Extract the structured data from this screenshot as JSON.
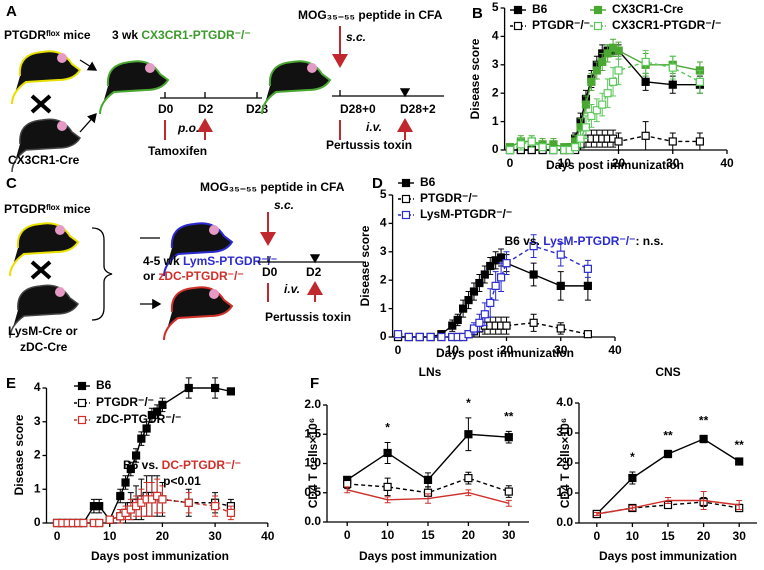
{
  "panel_labels": [
    "A",
    "B",
    "C",
    "D",
    "E",
    "F"
  ],
  "diagram_a": {
    "flox_mice": "PTGDRᶠˡᵒˣ mice",
    "cre_mice": "CX3CR1-Cre",
    "age": "3 wk ",
    "knockout": "CX3CR1-PTGDR⁻/⁻",
    "days": [
      "D0",
      "D2",
      "D28"
    ],
    "gavage": "p.o.",
    "drug": "Tamoxifen",
    "immunization": "MOG₃₅₋₅₅ peptide in CFA",
    "route": "s.c.",
    "boost_days": [
      "D28+0",
      "D28+2"
    ],
    "injection": "i.v.",
    "toxin": "Pertussis toxin"
  },
  "diagram_c": {
    "flox_mice": "PTGDRᶠˡᵒˣ mice",
    "cre_mice": [
      "LysM-Cre or",
      "zDC-Cre"
    ],
    "age": "4-5 wk ",
    "knockout_1": "LymS-PTGDR⁻/⁻",
    "or": "or ",
    "knockout_2": "zDC-PTGDR⁻/⁻",
    "immunization": "MOG₃₅₋₅₅ peptide in CFA",
    "route": "s.c.",
    "days": [
      "D0",
      "D2"
    ],
    "injection": "i.v.",
    "toxin": "Pertussis toxin"
  },
  "chart_data": [
    {
      "type": "line",
      "x_label": "Days post immunization",
      "y_label": "Disease score",
      "x": [
        0,
        2,
        4,
        6,
        8,
        10,
        11,
        12,
        13,
        14,
        15,
        16,
        17,
        18,
        19,
        20,
        25,
        30,
        35
      ],
      "xlim": [
        -1,
        40
      ],
      "xticks": [
        0,
        10,
        20,
        30,
        40
      ],
      "ylim": [
        0,
        5
      ],
      "yticks": [
        0,
        1,
        2,
        3,
        4,
        5
      ],
      "series": [
        {
          "name": "B6",
          "color": "#000000",
          "marker": "filled",
          "dashed": false,
          "values": [
            0,
            0,
            0,
            0,
            0,
            0,
            0.1,
            0.4,
            1.0,
            1.8,
            2.5,
            3.0,
            3.4,
            3.5,
            3.5,
            3.5,
            2.4,
            2.3,
            2.3
          ],
          "errors": [
            0,
            0,
            0,
            0,
            0,
            0,
            0.1,
            0.2,
            0.3,
            0.3,
            0.3,
            0.3,
            0.3,
            0.2,
            0.2,
            0.2,
            0.3,
            0.3,
            0.3
          ]
        },
        {
          "name": "PTGDR⁻/⁻",
          "color": "#000000",
          "marker": "open",
          "dashed": true,
          "values": [
            0,
            0,
            0,
            0,
            0,
            0,
            0,
            0,
            0.2,
            0.4,
            0.4,
            0.4,
            0.4,
            0.4,
            0.4,
            0.3,
            0.5,
            0.3,
            0.3
          ],
          "errors": [
            0,
            0,
            0,
            0,
            0,
            0,
            0,
            0,
            0.2,
            0.3,
            0.3,
            0.3,
            0.3,
            0.3,
            0.3,
            0.3,
            0.5,
            0.3,
            0.3
          ]
        },
        {
          "name": "CX3CR1-Cre",
          "color": "#4aa832",
          "marker": "filled",
          "dashed": false,
          "values": [
            0.1,
            0.3,
            0.3,
            0.2,
            0.2,
            0.1,
            0.1,
            0.3,
            0.8,
            1.6,
            2.4,
            2.8,
            3.1,
            3.4,
            3.6,
            3.5,
            3.0,
            3.0,
            2.8
          ],
          "errors": [
            0.1,
            0.2,
            0.2,
            0.2,
            0.2,
            0.1,
            0.1,
            0.2,
            0.3,
            0.3,
            0.3,
            0.3,
            0.3,
            0.3,
            0.3,
            0.3,
            0.4,
            0.3,
            0.3
          ]
        },
        {
          "name": "CX3CR1-PTGDR⁻/⁻",
          "color": "#5cc85c",
          "marker": "open",
          "dashed": true,
          "values": [
            0,
            0.2,
            0.3,
            0.1,
            0,
            0,
            0,
            0.1,
            0.4,
            0.8,
            1.2,
            1.4,
            1.6,
            2.0,
            2.4,
            2.8,
            3.1,
            2.9,
            2.4
          ],
          "errors": [
            0,
            0.2,
            0.2,
            0.1,
            0,
            0,
            0,
            0.1,
            0.3,
            0.4,
            0.4,
            0.4,
            0.4,
            0.5,
            0.5,
            0.5,
            0.4,
            0.4,
            0.4
          ]
        }
      ]
    },
    {
      "type": "line",
      "x_label": "Days post immunization",
      "y_label": "Disease score",
      "x": [
        0,
        2,
        4,
        6,
        8,
        10,
        11,
        12,
        13,
        14,
        15,
        16,
        17,
        18,
        19,
        20,
        25,
        30,
        35
      ],
      "xlim": [
        -1,
        40
      ],
      "xticks": [
        0,
        10,
        20,
        30,
        40
      ],
      "ylim": [
        0,
        5
      ],
      "yticks": [
        0,
        1,
        2,
        3,
        4,
        5
      ],
      "annotations": [
        [
          {
            "text": "B6 vs. ",
            "color": "#000000"
          },
          {
            "text": "LysM-PTGDR⁻/⁻",
            "color": "#2b2bd0"
          },
          {
            "text": ": n.s.",
            "color": "#000000"
          }
        ]
      ],
      "series": [
        {
          "name": "B6",
          "color": "#000000",
          "marker": "filled",
          "dashed": false,
          "values": [
            0,
            0,
            0,
            0,
            0.1,
            0.4,
            0.6,
            1.0,
            1.3,
            1.6,
            1.9,
            2.2,
            2.5,
            2.7,
            2.8,
            2.6,
            2.2,
            1.8,
            1.8
          ],
          "errors": [
            0,
            0,
            0,
            0,
            0.1,
            0.2,
            0.2,
            0.3,
            0.3,
            0.3,
            0.3,
            0.3,
            0.3,
            0.3,
            0.3,
            0.3,
            0.4,
            0.5,
            0.5
          ]
        },
        {
          "name": "PTGDR⁻/⁻",
          "color": "#000000",
          "marker": "open",
          "dashed": true,
          "values": [
            0,
            0,
            0,
            0,
            0,
            0,
            0,
            0,
            0.1,
            0.2,
            0.3,
            0.4,
            0.4,
            0.4,
            0.4,
            0.4,
            0.5,
            0.3,
            0.1
          ],
          "errors": [
            0,
            0,
            0,
            0,
            0,
            0,
            0,
            0,
            0.1,
            0.2,
            0.3,
            0.3,
            0.3,
            0.3,
            0.3,
            0.3,
            0.3,
            0.2,
            0.1
          ]
        },
        {
          "name": "LysM-PTGDR⁻/⁻",
          "color": "#2b2bd0",
          "marker": "open",
          "dashed": true,
          "values": [
            0.1,
            0,
            0,
            0,
            0,
            0,
            0,
            0,
            0.1,
            0.3,
            0.5,
            0.8,
            1.2,
            1.8,
            2.1,
            2.6,
            3.2,
            2.9,
            2.4
          ],
          "errors": [
            0.1,
            0,
            0,
            0,
            0,
            0,
            0,
            0,
            0.1,
            0.2,
            0.3,
            0.4,
            0.5,
            0.5,
            0.5,
            0.4,
            0.4,
            0.4,
            0.3
          ]
        }
      ]
    },
    {
      "type": "line",
      "x_label": "Days post immunization",
      "y_label": "Disease score",
      "x": [
        0,
        1,
        2,
        3,
        4,
        5,
        7,
        8,
        10,
        12,
        13,
        14,
        15,
        16,
        17,
        18,
        19,
        20,
        25,
        30,
        33
      ],
      "xlim": [
        -2,
        40
      ],
      "xticks": [
        0,
        10,
        20,
        30,
        40
      ],
      "ylim": [
        0,
        4
      ],
      "yticks": [
        0,
        1,
        2,
        3,
        4
      ],
      "annotations": [
        [
          {
            "text": "B6 vs. ",
            "color": "#000000"
          },
          {
            "text": "DC-PTGDR⁻/⁻",
            "color": "#d0302a"
          }
        ],
        [
          {
            "text": "p<0.01",
            "color": "#000000"
          }
        ]
      ],
      "series": [
        {
          "name": "B6",
          "color": "#000000",
          "marker": "filled",
          "dashed": false,
          "values": [
            0,
            0,
            0,
            0,
            0,
            0,
            0.5,
            0.5,
            0.1,
            0.8,
            1.2,
            1.6,
            2.0,
            2.5,
            2.8,
            3.2,
            3.3,
            3.5,
            4.0,
            4.0,
            3.9
          ],
          "errors": [
            0,
            0,
            0,
            0,
            0,
            0,
            0.2,
            0.2,
            0.1,
            0.2,
            0.2,
            0.2,
            0.2,
            0.2,
            0.2,
            0.2,
            0.2,
            0.2,
            0.3,
            0.3,
            0.1
          ]
        },
        {
          "name": "PTGDR⁻/⁻",
          "color": "#000000",
          "marker": "open",
          "dashed": true,
          "values": [
            0,
            0,
            0,
            0,
            0,
            0,
            0,
            0,
            0.1,
            0.2,
            0.3,
            0.5,
            0.6,
            0.7,
            0.8,
            0.8,
            0.8,
            0.7,
            0.6,
            0.6,
            0.5
          ],
          "errors": [
            0,
            0,
            0,
            0,
            0,
            0,
            0,
            0,
            0.1,
            0.2,
            0.3,
            0.4,
            0.5,
            0.6,
            0.6,
            0.6,
            0.6,
            0.5,
            0.4,
            0.3,
            0.2
          ]
        },
        {
          "name": "zDC-PTGDR⁻/⁻",
          "color": "#d0302a",
          "marker": "open",
          "dashed": true,
          "values": [
            0,
            0,
            0,
            0,
            0,
            0,
            0,
            0,
            0.1,
            0.2,
            0.3,
            0.4,
            0.5,
            0.6,
            0.7,
            0.7,
            0.8,
            0.7,
            0.6,
            0.5,
            0.3
          ],
          "errors": [
            0,
            0,
            0,
            0,
            0,
            0,
            0,
            0,
            0.1,
            0.2,
            0.2,
            0.3,
            0.3,
            0.4,
            0.5,
            0.5,
            0.5,
            0.4,
            0.3,
            0.3,
            0.2
          ]
        }
      ]
    },
    {
      "type": "line",
      "title": "LNs",
      "x_label": "Days post immunization",
      "y_label": "CD4 T cells×10⁶",
      "categories": [
        "0",
        "10",
        "15",
        "20",
        "30"
      ],
      "ylim": [
        0,
        2
      ],
      "yticks": [
        {
          "value": 0,
          "label": "0.0"
        },
        {
          "value": 0.5,
          "label": "0.5"
        },
        {
          "value": 1,
          "label": "1.0"
        },
        {
          "value": 1.5,
          "label": "1.5"
        },
        {
          "value": 2,
          "label": "2.0"
        }
      ],
      "significance": [
        null,
        "*",
        null,
        "*",
        "**"
      ],
      "series": [
        {
          "color": "#000000",
          "marker": "filled",
          "dashed": false,
          "values": [
            0.72,
            1.18,
            0.72,
            1.5,
            1.45
          ],
          "errors": [
            0.05,
            0.18,
            0.12,
            0.28,
            0.1
          ]
        },
        {
          "color": "#000000",
          "marker": "open",
          "dashed": true,
          "values": [
            0.65,
            0.6,
            0.5,
            0.75,
            0.52
          ],
          "errors": [
            0.08,
            0.15,
            0.1,
            0.1,
            0.1
          ]
        },
        {
          "color": "#d0302a",
          "marker": "none",
          "dashed": false,
          "values": [
            0.55,
            0.38,
            0.4,
            0.5,
            0.32
          ],
          "errors": [
            0.05,
            0.05,
            0.08,
            0.05,
            0.05
          ]
        }
      ]
    },
    {
      "type": "line",
      "title": "CNS",
      "x_label": "Days post immunization",
      "y_label": "CD4 T cells×10⁶",
      "categories": [
        "0",
        "10",
        "15",
        "20",
        "30"
      ],
      "ylim": [
        0,
        4
      ],
      "yticks": [
        {
          "value": 0,
          "label": "0.0"
        },
        {
          "value": 1,
          "label": "1.0"
        },
        {
          "value": 2,
          "label": "2.0"
        },
        {
          "value": 3,
          "label": "3.0"
        },
        {
          "value": 4,
          "label": "4.0"
        }
      ],
      "significance": [
        null,
        "*",
        "**",
        "**",
        "**"
      ],
      "series": [
        {
          "color": "#000000",
          "marker": "filled",
          "dashed": false,
          "values": [
            0.3,
            1.5,
            2.3,
            2.8,
            2.05
          ],
          "errors": [
            0.05,
            0.2,
            0.12,
            0.12,
            0.05
          ]
        },
        {
          "color": "#000000",
          "marker": "open",
          "dashed": true,
          "values": [
            0.3,
            0.5,
            0.6,
            0.7,
            0.5
          ],
          "errors": [
            0.05,
            0.08,
            0.1,
            0.15,
            0.12
          ]
        },
        {
          "color": "#d0302a",
          "marker": "none",
          "dashed": false,
          "values": [
            0.3,
            0.5,
            0.75,
            0.75,
            0.6
          ],
          "errors": [
            0.05,
            0.08,
            0.1,
            0.3,
            0.15
          ]
        }
      ]
    }
  ]
}
